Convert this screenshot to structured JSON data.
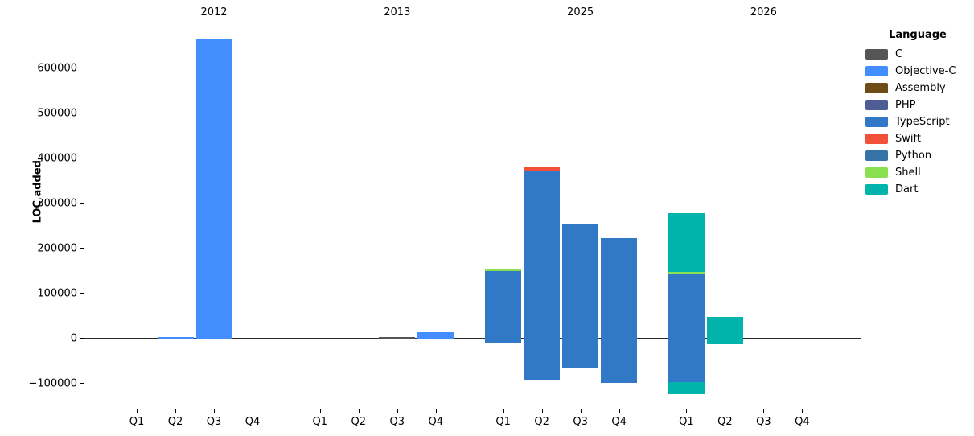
{
  "chart_data": {
    "type": "bar",
    "stacked": true,
    "title": "",
    "xlabel": "",
    "ylabel": "LOC added",
    "ylim": [
      -157000,
      698000
    ],
    "yticks": [
      600000,
      500000,
      400000,
      300000,
      200000,
      100000,
      0,
      -100000
    ],
    "quarter_labels": [
      "Q1",
      "Q2",
      "Q3",
      "Q4"
    ],
    "legend_title": "Language",
    "legend": [
      {
        "name": "C",
        "color": "#555555"
      },
      {
        "name": "Objective-C",
        "color": "#438eff"
      },
      {
        "name": "Assembly",
        "color": "#6e4c13"
      },
      {
        "name": "PHP",
        "color": "#4f5d95"
      },
      {
        "name": "TypeScript",
        "color": "#3178c6"
      },
      {
        "name": "Swift",
        "color": "#f05138"
      },
      {
        "name": "Python",
        "color": "#3572a5"
      },
      {
        "name": "Shell",
        "color": "#89e051"
      },
      {
        "name": "Dart",
        "color": "#00b4ab"
      }
    ],
    "facets": [
      {
        "year": "2012",
        "bars": [
          [],
          [
            {
              "language": "Objective-C",
              "value": 3500
            }
          ],
          [
            {
              "language": "Objective-C",
              "value": 665000
            }
          ],
          []
        ]
      },
      {
        "year": "2013",
        "bars": [
          [],
          [],
          [
            {
              "language": "C",
              "value": 3500
            }
          ],
          [
            {
              "language": "Objective-C",
              "value": 14000
            }
          ]
        ]
      },
      {
        "year": "2025",
        "bars": [
          [
            {
              "language": "TypeScript",
              "value": 149000
            },
            {
              "language": "Shell",
              "value": 4000
            },
            {
              "language": "TypeScript",
              "value": -10000
            }
          ],
          [
            {
              "language": "TypeScript",
              "value": 371000
            },
            {
              "language": "Swift",
              "value": 11000
            },
            {
              "language": "TypeScript",
              "value": -94000
            }
          ],
          [
            {
              "language": "TypeScript",
              "value": 253000
            },
            {
              "language": "TypeScript",
              "value": -66000
            }
          ],
          [
            {
              "language": "TypeScript",
              "value": 223000
            },
            {
              "language": "TypeScript",
              "value": -99000
            }
          ]
        ]
      },
      {
        "year": "2026",
        "bars": [
          [
            {
              "language": "TypeScript",
              "value": 143000
            },
            {
              "language": "Shell",
              "value": 4000
            },
            {
              "language": "Dart",
              "value": 131000
            },
            {
              "language": "TypeScript",
              "value": -97000
            },
            {
              "language": "Dart",
              "value": -26000
            }
          ],
          [
            {
              "language": "Dart",
              "value": 47000
            },
            {
              "language": "Dart",
              "value": -13000
            }
          ],
          [],
          []
        ]
      }
    ]
  }
}
